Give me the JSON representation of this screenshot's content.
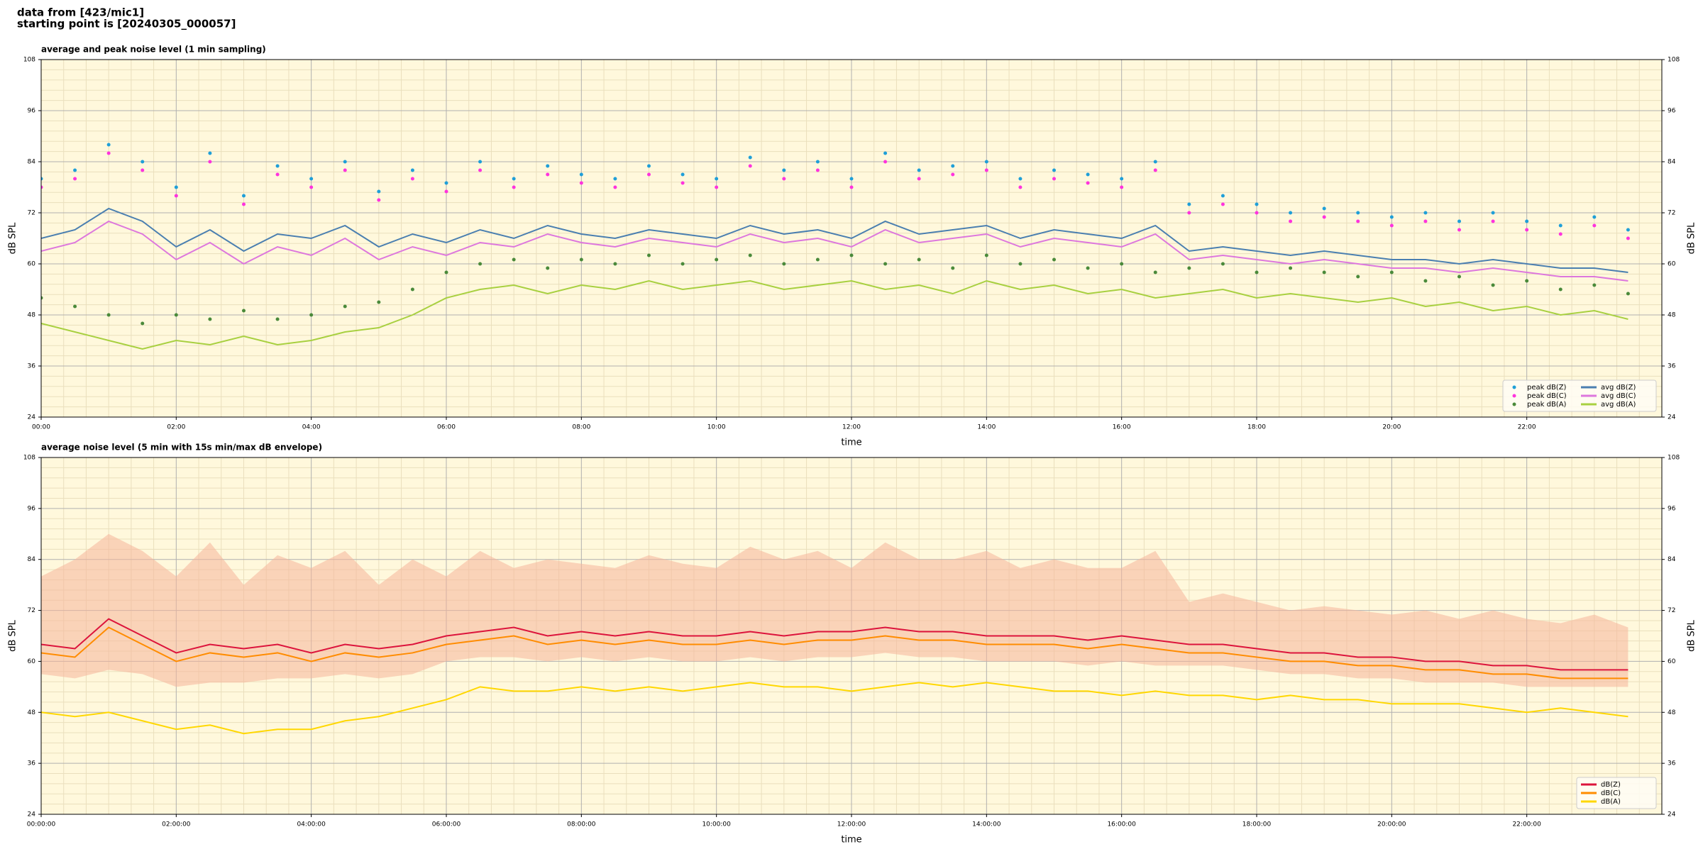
{
  "header": {
    "lines": [
      "data from [423/mic1]",
      "starting point is [20240305_000057]"
    ]
  },
  "chart_data": [
    {
      "type": "line",
      "title": "average and peak noise level (1 min sampling)",
      "x_label": "time",
      "y_label": "dB SPL",
      "x": [
        0,
        0.5,
        1,
        1.5,
        2,
        2.5,
        3,
        3.5,
        4,
        4.5,
        5,
        5.5,
        6,
        6.5,
        7,
        7.5,
        8,
        8.5,
        9,
        9.5,
        10,
        10.5,
        11,
        11.5,
        12,
        12.5,
        13,
        13.5,
        14,
        14.5,
        15,
        15.5,
        16,
        16.5,
        17,
        17.5,
        18,
        18.5,
        19,
        19.5,
        20,
        20.5,
        21,
        21.5,
        22,
        22.5,
        23,
        23.5
      ],
      "xlim": [
        0,
        24
      ],
      "xticks": [
        {
          "value": 0,
          "label": "00:00"
        },
        {
          "value": 2,
          "label": "02:00"
        },
        {
          "value": 4,
          "label": "04:00"
        },
        {
          "value": 6,
          "label": "06:00"
        },
        {
          "value": 8,
          "label": "08:00"
        },
        {
          "value": 10,
          "label": "10:00"
        },
        {
          "value": 12,
          "label": "12:00"
        },
        {
          "value": 14,
          "label": "14:00"
        },
        {
          "value": 16,
          "label": "16:00"
        },
        {
          "value": 18,
          "label": "18:00"
        },
        {
          "value": 20,
          "label": "20:00"
        },
        {
          "value": 22,
          "label": "22:00"
        }
      ],
      "ylim": [
        24,
        108
      ],
      "yticks": [
        24,
        36,
        48,
        60,
        72,
        84,
        96,
        108
      ],
      "grid": true,
      "minor_grid": true,
      "legend": "lower right",
      "legend_columns": 2,
      "background": "#fff8dc",
      "series": [
        {
          "name": "peak dB(Z)",
          "style": "points",
          "color": "#1f9fd8",
          "values": [
            80,
            82,
            88,
            84,
            78,
            86,
            76,
            83,
            80,
            84,
            77,
            82,
            79,
            84,
            80,
            83,
            81,
            80,
            83,
            81,
            80,
            85,
            82,
            84,
            80,
            86,
            82,
            83,
            84,
            80,
            82,
            81,
            80,
            84,
            74,
            76,
            74,
            72,
            73,
            72,
            71,
            72,
            70,
            72,
            70,
            69,
            71,
            68
          ]
        },
        {
          "name": "peak dB(C)",
          "style": "points",
          "color": "#ff33dd",
          "values": [
            78,
            80,
            86,
            82,
            76,
            84,
            74,
            81,
            78,
            82,
            75,
            80,
            77,
            82,
            78,
            81,
            79,
            78,
            81,
            79,
            78,
            83,
            80,
            82,
            78,
            84,
            80,
            81,
            82,
            78,
            80,
            79,
            78,
            82,
            72,
            74,
            72,
            70,
            71,
            70,
            69,
            70,
            68,
            70,
            68,
            67,
            69,
            66
          ]
        },
        {
          "name": "peak dB(A)",
          "style": "points",
          "color": "#4a8a3a",
          "values": [
            52,
            50,
            48,
            46,
            48,
            47,
            49,
            47,
            48,
            50,
            51,
            54,
            58,
            60,
            61,
            59,
            61,
            60,
            62,
            60,
            61,
            62,
            60,
            61,
            62,
            60,
            61,
            59,
            62,
            60,
            61,
            59,
            60,
            58,
            59,
            60,
            58,
            59,
            58,
            57,
            58,
            56,
            57,
            55,
            56,
            54,
            55,
            53
          ]
        },
        {
          "name": "avg dB(Z)",
          "style": "line",
          "color": "#4a7fb0",
          "values": [
            66,
            68,
            73,
            70,
            64,
            68,
            63,
            67,
            66,
            69,
            64,
            67,
            65,
            68,
            66,
            69,
            67,
            66,
            68,
            67,
            66,
            69,
            67,
            68,
            66,
            70,
            67,
            68,
            69,
            66,
            68,
            67,
            66,
            69,
            63,
            64,
            63,
            62,
            63,
            62,
            61,
            61,
            60,
            61,
            60,
            59,
            59,
            58
          ]
        },
        {
          "name": "avg dB(C)",
          "style": "line",
          "color": "#dd77dd",
          "values": [
            63,
            65,
            70,
            67,
            61,
            65,
            60,
            64,
            62,
            66,
            61,
            64,
            62,
            65,
            64,
            67,
            65,
            64,
            66,
            65,
            64,
            67,
            65,
            66,
            64,
            68,
            65,
            66,
            67,
            64,
            66,
            65,
            64,
            67,
            61,
            62,
            61,
            60,
            61,
            60,
            59,
            59,
            58,
            59,
            58,
            57,
            57,
            56
          ]
        },
        {
          "name": "avg dB(A)",
          "style": "line",
          "color": "#a8d040",
          "values": [
            46,
            44,
            42,
            40,
            42,
            41,
            43,
            41,
            42,
            44,
            45,
            48,
            52,
            54,
            55,
            53,
            55,
            54,
            56,
            54,
            55,
            56,
            54,
            55,
            56,
            54,
            55,
            53,
            56,
            54,
            55,
            53,
            54,
            52,
            53,
            54,
            52,
            53,
            52,
            51,
            52,
            50,
            51,
            49,
            50,
            48,
            49,
            47
          ]
        }
      ]
    },
    {
      "type": "line",
      "title": "average noise level (5 min with 15s min/max dB envelope)",
      "x_label": "time",
      "y_label": "dB SPL",
      "x": [
        0,
        0.5,
        1,
        1.5,
        2,
        2.5,
        3,
        3.5,
        4,
        4.5,
        5,
        5.5,
        6,
        6.5,
        7,
        7.5,
        8,
        8.5,
        9,
        9.5,
        10,
        10.5,
        11,
        11.5,
        12,
        12.5,
        13,
        13.5,
        14,
        14.5,
        15,
        15.5,
        16,
        16.5,
        17,
        17.5,
        18,
        18.5,
        19,
        19.5,
        20,
        20.5,
        21,
        21.5,
        22,
        22.5,
        23,
        23.5
      ],
      "xlim": [
        0,
        24
      ],
      "xticks": [
        {
          "value": 0,
          "label": "00:00:00"
        },
        {
          "value": 2,
          "label": "02:00:00"
        },
        {
          "value": 4,
          "label": "04:00:00"
        },
        {
          "value": 6,
          "label": "06:00:00"
        },
        {
          "value": 8,
          "label": "08:00:00"
        },
        {
          "value": 10,
          "label": "10:00:00"
        },
        {
          "value": 12,
          "label": "12:00:00"
        },
        {
          "value": 14,
          "label": "14:00:00"
        },
        {
          "value": 16,
          "label": "16:00:00"
        },
        {
          "value": 18,
          "label": "18:00:00"
        },
        {
          "value": 20,
          "label": "20:00:00"
        },
        {
          "value": 22,
          "label": "22:00:00"
        }
      ],
      "ylim": [
        24,
        108
      ],
      "yticks": [
        24,
        36,
        48,
        60,
        72,
        84,
        96,
        108
      ],
      "grid": true,
      "minor_grid": true,
      "legend": "lower right",
      "legend_columns": 1,
      "background": "#fff8dc",
      "envelope": {
        "color": "#f5b49a",
        "upper": [
          80,
          84,
          90,
          86,
          80,
          88,
          78,
          85,
          82,
          86,
          78,
          84,
          80,
          86,
          82,
          84,
          83,
          82,
          85,
          83,
          82,
          87,
          84,
          86,
          82,
          88,
          84,
          84,
          86,
          82,
          84,
          82,
          82,
          86,
          74,
          76,
          74,
          72,
          73,
          72,
          71,
          72,
          70,
          72,
          70,
          69,
          71,
          68
        ],
        "lower": [
          57,
          56,
          58,
          57,
          54,
          55,
          55,
          56,
          56,
          57,
          56,
          57,
          60,
          61,
          61,
          60,
          61,
          60,
          61,
          60,
          60,
          61,
          60,
          61,
          61,
          62,
          61,
          61,
          60,
          60,
          60,
          59,
          60,
          59,
          59,
          59,
          58,
          57,
          57,
          56,
          56,
          55,
          55,
          55,
          54,
          54,
          54,
          54
        ]
      },
      "series": [
        {
          "name": "dB(Z)",
          "style": "line",
          "color": "#dc143c",
          "values": [
            64,
            63,
            70,
            66,
            62,
            64,
            63,
            64,
            62,
            64,
            63,
            64,
            66,
            67,
            68,
            66,
            67,
            66,
            67,
            66,
            66,
            67,
            66,
            67,
            67,
            68,
            67,
            67,
            66,
            66,
            66,
            65,
            66,
            65,
            64,
            64,
            63,
            62,
            62,
            61,
            61,
            60,
            60,
            59,
            59,
            58,
            58,
            58
          ]
        },
        {
          "name": "dB(C)",
          "style": "line",
          "color": "#ff8c00",
          "values": [
            62,
            61,
            68,
            64,
            60,
            62,
            61,
            62,
            60,
            62,
            61,
            62,
            64,
            65,
            66,
            64,
            65,
            64,
            65,
            64,
            64,
            65,
            64,
            65,
            65,
            66,
            65,
            65,
            64,
            64,
            64,
            63,
            64,
            63,
            62,
            62,
            61,
            60,
            60,
            59,
            59,
            58,
            58,
            57,
            57,
            56,
            56,
            56
          ]
        },
        {
          "name": "dB(A)",
          "style": "line",
          "color": "#ffd700",
          "values": [
            48,
            47,
            48,
            46,
            44,
            45,
            43,
            44,
            44,
            46,
            47,
            49,
            51,
            54,
            53,
            53,
            54,
            53,
            54,
            53,
            54,
            55,
            54,
            54,
            53,
            54,
            55,
            54,
            55,
            54,
            53,
            53,
            52,
            53,
            52,
            52,
            51,
            52,
            51,
            51,
            50,
            50,
            50,
            49,
            48,
            49,
            48,
            47
          ]
        }
      ]
    }
  ]
}
